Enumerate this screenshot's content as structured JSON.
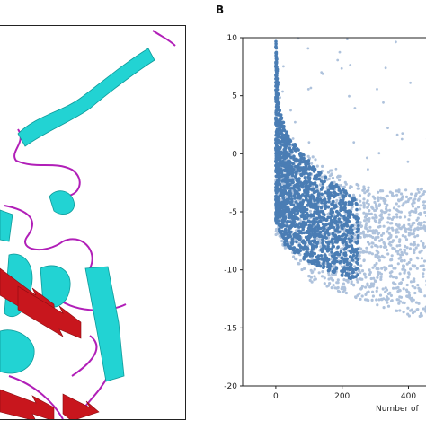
{
  "panel_a": {
    "label": "",
    "colors": {
      "helix": "#22d3d3",
      "sheet": "#c8161d",
      "coil": "#b11fb8"
    }
  },
  "panel_b": {
    "label": "B"
  },
  "chart_data": {
    "type": "scatter",
    "title": "",
    "xlabel": "Number of",
    "ylabel": "",
    "xlim": [
      -100,
      480
    ],
    "ylim": [
      -20,
      10
    ],
    "x_ticks": [
      0,
      200,
      400
    ],
    "y_ticks": [
      10,
      5,
      0,
      -5,
      -10,
      -15,
      -20
    ],
    "grid": false,
    "series": [
      {
        "color": "#aec2dc",
        "shape": "cloud",
        "x_range": [
          0,
          480
        ],
        "band_upper": [
          [
            0,
            2
          ],
          [
            100,
            0
          ],
          [
            200,
            -2
          ],
          [
            300,
            -3
          ],
          [
            400,
            -3
          ],
          [
            480,
            -3
          ]
        ],
        "band_lower": [
          [
            0,
            -7
          ],
          [
            100,
            -11
          ],
          [
            200,
            -12
          ],
          [
            300,
            -13
          ],
          [
            400,
            -14
          ],
          [
            480,
            -14
          ]
        ]
      },
      {
        "color": "#4a7db4",
        "shape": "cloud",
        "x_range": [
          0,
          250
        ],
        "band_upper": [
          [
            0,
            10
          ],
          [
            10,
            4
          ],
          [
            30,
            2
          ],
          [
            80,
            0
          ],
          [
            150,
            -2
          ],
          [
            250,
            -4
          ]
        ],
        "band_lower": [
          [
            0,
            -6
          ],
          [
            30,
            -8
          ],
          [
            80,
            -9
          ],
          [
            150,
            -10
          ],
          [
            250,
            -11
          ]
        ]
      }
    ]
  }
}
